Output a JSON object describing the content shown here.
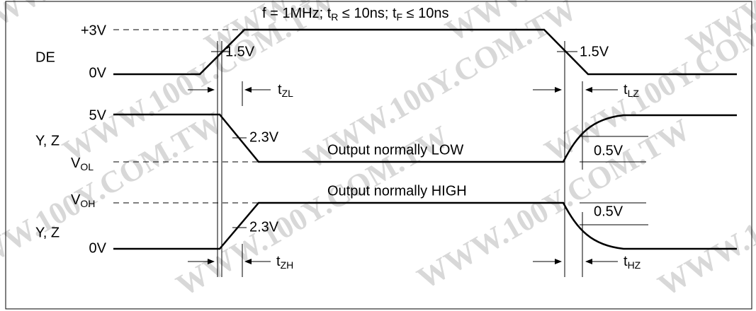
{
  "watermark": "WWW.100Y.COM.TW",
  "header": {
    "title": [
      {
        "text": "f = 1MHz;  t"
      },
      {
        "sub": "R"
      },
      {
        "text": " ≤ 10ns;  t"
      },
      {
        "sub": "F"
      },
      {
        "text": " ≤ 10ns"
      }
    ]
  },
  "de": {
    "name": "DE",
    "high": "+3V",
    "low": "0V",
    "threshold_rise": "1.5V",
    "threshold_fall": "1.5V"
  },
  "yz_low": {
    "name": "Y, Z",
    "high": "5V",
    "low": {
      "main": "V",
      "sub": "OL"
    },
    "threshold": "2.3V",
    "note": "Output normally LOW",
    "delta": "0.5V"
  },
  "yz_high": {
    "name": "Y, Z",
    "high": {
      "main": "V",
      "sub": "OH"
    },
    "low": "0V",
    "threshold": "2.3V",
    "note": "Output normally HIGH",
    "delta": "0.5V"
  },
  "timings": {
    "tzl": {
      "main": "t",
      "sub": "ZL"
    },
    "tlz": {
      "main": "t",
      "sub": "LZ"
    },
    "tzh": {
      "main": "t",
      "sub": "ZH"
    },
    "thz": {
      "main": "t",
      "sub": "HZ"
    }
  }
}
